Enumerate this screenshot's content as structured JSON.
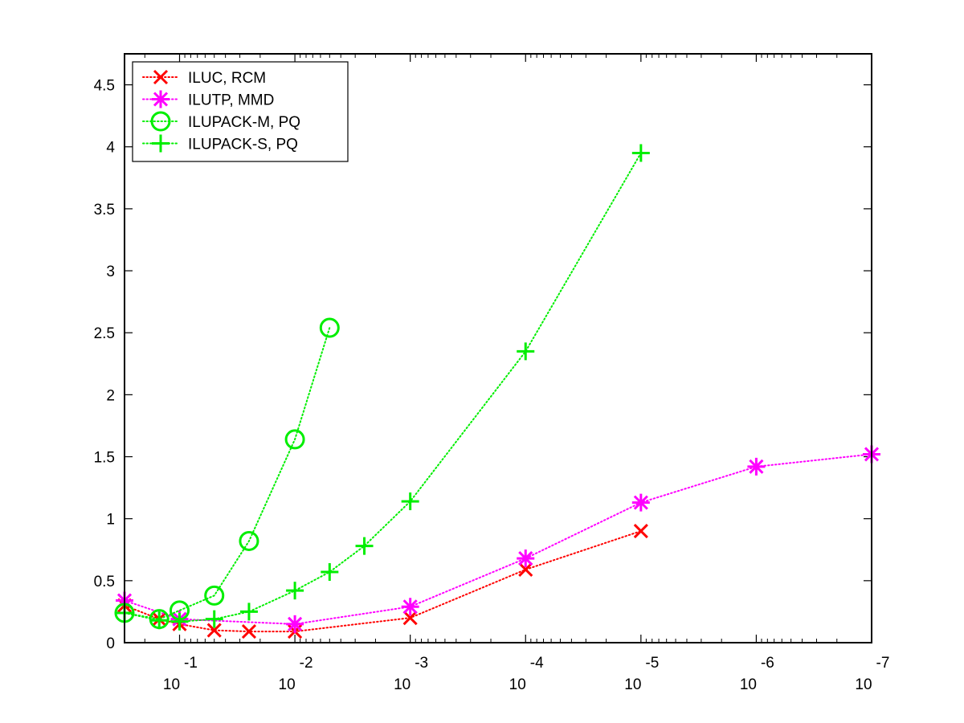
{
  "chart_data": {
    "type": "line",
    "x_scale": "log",
    "x_reversed": true,
    "xlim": [
      0.3,
      1e-07
    ],
    "ylim": [
      0,
      4.75
    ],
    "grid": false,
    "box": true,
    "legend_placement": "top-left",
    "y_ticks": [
      0,
      0.5,
      1,
      1.5,
      2,
      2.5,
      3,
      3.5,
      4,
      4.5
    ],
    "y_tick_labels": [
      "0",
      "0.5",
      "1",
      "1.5",
      "2",
      "2.5",
      "3",
      "3.5",
      "4",
      "4.5"
    ],
    "x_ticks": [
      0.1,
      0.01,
      0.001,
      0.0001,
      1e-05,
      1e-06,
      1e-07
    ],
    "x_tick_base": [
      "10",
      "10",
      "10",
      "10",
      "10",
      "10",
      "10"
    ],
    "x_tick_exponents": [
      "-1",
      "-2",
      "-3",
      "-4",
      "-5",
      "-6",
      "-7"
    ],
    "series": [
      {
        "name": "ILUC, RCM",
        "color": "#ff0000",
        "marker": "x",
        "points": [
          {
            "x": 0.3,
            "y": 0.3
          },
          {
            "x": 0.15,
            "y": 0.19
          },
          {
            "x": 0.1,
            "y": 0.15
          },
          {
            "x": 0.05,
            "y": 0.1
          },
          {
            "x": 0.025,
            "y": 0.09
          },
          {
            "x": 0.01,
            "y": 0.09
          },
          {
            "x": 0.001,
            "y": 0.2
          },
          {
            "x": 0.0001,
            "y": 0.59
          },
          {
            "x": 1e-05,
            "y": 0.9
          }
        ]
      },
      {
        "name": "ILUTP, MMD",
        "color": "#ff00ff",
        "marker": "asterisk",
        "points": [
          {
            "x": 0.3,
            "y": 0.34
          },
          {
            "x": 0.1,
            "y": 0.19
          },
          {
            "x": 0.01,
            "y": 0.15
          },
          {
            "x": 0.001,
            "y": 0.29
          },
          {
            "x": 0.0001,
            "y": 0.68
          },
          {
            "x": 1e-05,
            "y": 1.13
          },
          {
            "x": 1e-06,
            "y": 1.42
          },
          {
            "x": 1e-07,
            "y": 1.52
          }
        ]
      },
      {
        "name": "ILUPACK-M, PQ",
        "color": "#00ee00",
        "marker": "circle",
        "points": [
          {
            "x": 0.3,
            "y": 0.24
          },
          {
            "x": 0.15,
            "y": 0.19
          },
          {
            "x": 0.1,
            "y": 0.26
          },
          {
            "x": 0.05,
            "y": 0.38
          },
          {
            "x": 0.025,
            "y": 0.82
          },
          {
            "x": 0.01,
            "y": 1.64
          },
          {
            "x": 0.005,
            "y": 2.54
          }
        ]
      },
      {
        "name": "ILUPACK-S, PQ",
        "color": "#00ee00",
        "marker": "plus",
        "points": [
          {
            "x": 0.3,
            "y": 0.24
          },
          {
            "x": 0.15,
            "y": 0.18
          },
          {
            "x": 0.1,
            "y": 0.17
          },
          {
            "x": 0.05,
            "y": 0.19
          },
          {
            "x": 0.025,
            "y": 0.25
          },
          {
            "x": 0.01,
            "y": 0.42
          },
          {
            "x": 0.005,
            "y": 0.57
          },
          {
            "x": 0.0025,
            "y": 0.78
          },
          {
            "x": 0.001,
            "y": 1.14
          },
          {
            "x": 0.0001,
            "y": 2.35
          },
          {
            "x": 1e-05,
            "y": 3.95
          }
        ]
      }
    ]
  }
}
